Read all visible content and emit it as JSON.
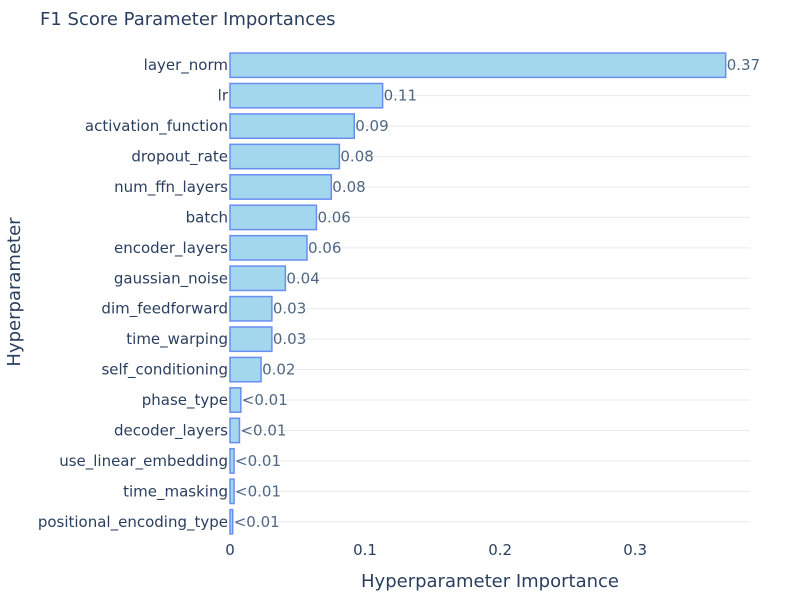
{
  "chart_data": {
    "type": "bar",
    "orientation": "horizontal",
    "title": "F1 Score Parameter Importances",
    "xlabel": "Hyperparameter Importance",
    "ylabel": "Hyperparameter",
    "xlim": [
      0,
      0.385
    ],
    "xticks": [
      0,
      0.1,
      0.2,
      0.3
    ],
    "xtick_labels": [
      "0",
      "0.1",
      "0.2",
      "0.3"
    ],
    "grid": true,
    "colors": {
      "bar_fill": "#a3d7ee",
      "bar_stroke": "#6a8df0",
      "grid": "#e6e9ef",
      "text": "#2a3f5f",
      "label": "#506784"
    },
    "categories": [
      "layer_norm",
      "lr",
      "activation_function",
      "dropout_rate",
      "num_ffn_layers",
      "batch",
      "encoder_layers",
      "gaussian_noise",
      "dim_feedforward",
      "time_warping",
      "self_conditioning",
      "phase_type",
      "decoder_layers",
      "use_linear_embedding",
      "time_masking",
      "positional_encoding_type"
    ],
    "values": [
      0.367,
      0.113,
      0.092,
      0.081,
      0.075,
      0.064,
      0.057,
      0.041,
      0.031,
      0.031,
      0.023,
      0.008,
      0.007,
      0.003,
      0.003,
      0.002
    ],
    "data_labels": [
      "0.37",
      "0.11",
      "0.09",
      "0.08",
      "0.08",
      "0.06",
      "0.06",
      "0.04",
      "0.03",
      "0.03",
      "0.02",
      "<0.01",
      "<0.01",
      "<0.01",
      "<0.01",
      "<0.01"
    ]
  }
}
